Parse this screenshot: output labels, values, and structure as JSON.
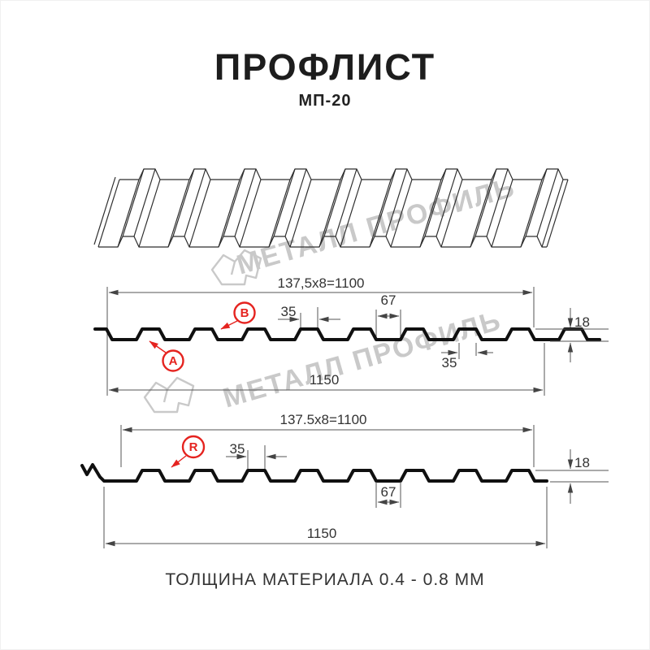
{
  "header": {
    "title": "ПРОФЛИСТ",
    "subtitle": "МП-20"
  },
  "watermark": {
    "text": "МЕТАЛЛ ПРОФИЛЬ"
  },
  "footer": {
    "text": "ТОЛЩИНА МАТЕРИАЛА 0.4 - 0.8 ММ"
  },
  "colors": {
    "accent_red": "#e5231f",
    "line": "#2e2e2e",
    "watermark_gray": "#c9c9c9"
  },
  "diagram_top": {
    "width_total": "137,5x8=1100",
    "rib_top_width": "35",
    "pan_width": "67",
    "profile_height": "18",
    "rib_bottom_width": "35",
    "overall_width": "1150",
    "label_a": "A",
    "label_b": "B"
  },
  "diagram_bottom": {
    "width_total": "137.5x8=1100",
    "rib_top_width": "35",
    "profile_height": "18",
    "pan_width": "67",
    "overall_width": "1150",
    "label_r": "R"
  }
}
